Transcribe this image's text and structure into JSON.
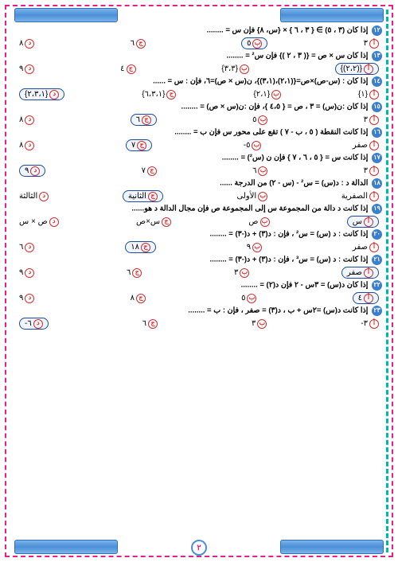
{
  "page_number": "٢",
  "questions": [
    {
      "n": "١٢",
      "text": "إذا كان (٣ ، ٥) ∋ { ٣ ، ٦ } × {س، ٨} فإن س = ........",
      "opts": [
        "٣",
        "٥",
        "٦",
        "٨"
      ],
      "correct": 1
    },
    {
      "n": "١٣",
      "text": "إذا كان س × ص = {( ٣ ، ٢ )} فإن س² = ........",
      "opts": [
        "{(٢،٢)}",
        "{٣،٣}",
        "٤",
        "٩"
      ],
      "correct": 0
    },
    {
      "n": "١٤",
      "text": "إذا كان : (س-ص)×ص={(٢،١)،(٣،١)}، ن(س × ص)=٦، فإن : س = ......",
      "opts": [
        "{١}",
        "{٢،١}",
        "{٦،٣،١}",
        "{٢،٣،١}"
      ],
      "correct": 3
    },
    {
      "n": "١٥",
      "text": "إذا كان :ن(س) = ٣ ، ص = { ٤،٥ }، فإن :ن(س × ص) = ........",
      "opts": [
        "٣",
        "٥",
        "٦",
        "٨"
      ],
      "correct": 2
    },
    {
      "n": "١٦",
      "text": "إذا كانت النقطة ( ٥ ، ب - ٧ ) تقع على محور س فإن ب = ........",
      "opts": [
        "صفر",
        "٥-",
        "٧",
        "٨"
      ],
      "correct": 2
    },
    {
      "n": "١٧",
      "text": "إذا كانت س = { ٥ ، ٦ ، ٧ } فإن ن (س²) = ........",
      "opts": [
        "٣",
        "٦",
        "٧",
        "٩"
      ],
      "correct": 3
    },
    {
      "n": "١٨",
      "text": "الدالة د : د(س) = س² - (س - ٢) من الدرجة ......",
      "opts": [
        "الصفرية",
        "الأولى",
        "الثانية",
        "الثالثة"
      ],
      "correct": 2
    },
    {
      "n": "١٩",
      "text": "إذا كانت د دالة من المجموعة س إلى المجموعة ص فإن مجال الدالة د هو......",
      "opts": [
        "س",
        "ص",
        "س×ص",
        "ص × س"
      ],
      "correct": 0
    },
    {
      "n": "٢٠",
      "text": "إذا كانت : د (س) = س² ، فإن : د(٣) + د(-٣) = ........",
      "opts": [
        "صفر",
        "٩",
        "١٨",
        "٦"
      ],
      "correct": 2
    },
    {
      "n": "٢١",
      "text": "إذا كانت : د (س) = س³ ، فإن : د(٣) + د(-٣) = ........",
      "opts": [
        "صفر",
        "٣",
        "٦",
        "٩"
      ],
      "correct": 0
    },
    {
      "n": "٢٢",
      "text": "إذا كان د(س) = ٣س - ٢ فإن د(٢) = ........",
      "opts": [
        "٤",
        "٥",
        "٨",
        "٩"
      ],
      "correct": 0
    },
    {
      "n": "٢٣",
      "text": "إذا كانت د(س) =٢س + ب ، د(٣) = صفر ، فإن : ب = ........",
      "opts": [
        "٣-",
        "٣",
        "٦",
        "٦-"
      ],
      "correct": 3
    }
  ],
  "labels": [
    "أ",
    "ب",
    "ج",
    "د"
  ]
}
